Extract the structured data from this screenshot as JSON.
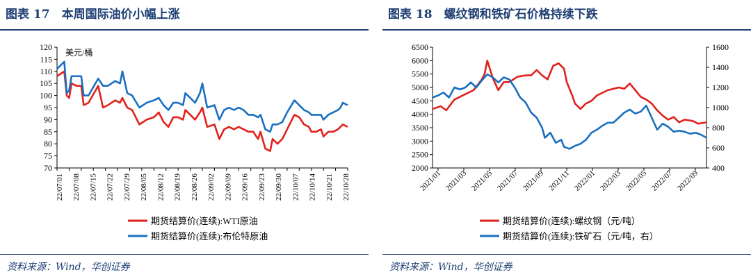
{
  "colors": {
    "red": "#e0211c",
    "blue": "#1a6fc0",
    "accent": "#1f3f73"
  },
  "left": {
    "title": "图表 17　本周国际油价小幅上涨",
    "source": "资料来源：Wind，华创证券"
  },
  "right": {
    "title": "图表 18　螺纹钢和铁矿石价格持续下跌",
    "source": "资料来源：Wind，华创证券"
  },
  "chart_data": [
    {
      "type": "line",
      "title": "本周国际油价小幅上涨",
      "unit_label": "美元/桶",
      "ylim": [
        70,
        120
      ],
      "yticks": [
        "120",
        "115",
        "110",
        "105",
        "100",
        "95",
        "90",
        "85",
        "80",
        "75",
        "70"
      ],
      "x_range": [
        0,
        120
      ],
      "x_tick_positions": [
        0,
        5,
        10,
        15,
        20,
        25,
        30,
        35,
        40,
        45,
        50,
        55,
        60,
        65,
        70,
        75,
        80,
        85,
        90,
        95,
        100,
        105,
        110,
        115,
        120
      ],
      "categories": [
        "22/07/01",
        "22/07/08",
        "22/07/15",
        "22/07/22",
        "22/07/29",
        "22/08/05",
        "22/08/12",
        "22/08/19",
        "22/08/26",
        "22/09/02",
        "22/09/09",
        "22/09/16",
        "22/09/23",
        "22/09/30",
        "22/10/07",
        "22/10/14",
        "22/10/21",
        "22/10/28"
      ],
      "series": [
        {
          "name": "期货结算价(连续):WTI原油",
          "color": "red",
          "points": [
            [
              0,
              108
            ],
            [
              3,
              110
            ],
            [
              4,
              100
            ],
            [
              5,
              99
            ],
            [
              6,
              105
            ],
            [
              8,
              104
            ],
            [
              10,
              104
            ],
            [
              11,
              96
            ],
            [
              13,
              97
            ],
            [
              17,
              104
            ],
            [
              19,
              95
            ],
            [
              21,
              96
            ],
            [
              24,
              98
            ],
            [
              26,
              97
            ],
            [
              27,
              99
            ],
            [
              29,
              95
            ],
            [
              31,
              94
            ],
            [
              34,
              88
            ],
            [
              37,
              90
            ],
            [
              40,
              91
            ],
            [
              42,
              93
            ],
            [
              44,
              89
            ],
            [
              46,
              87
            ],
            [
              48,
              91
            ],
            [
              50,
              91
            ],
            [
              52,
              90
            ],
            [
              53,
              94
            ],
            [
              55,
              92
            ],
            [
              57,
              90
            ],
            [
              59,
              93
            ],
            [
              60,
              95
            ],
            [
              62,
              87
            ],
            [
              65,
              88
            ],
            [
              67,
              82
            ],
            [
              69,
              86
            ],
            [
              71,
              87
            ],
            [
              73,
              86
            ],
            [
              75,
              87
            ],
            [
              77,
              86
            ],
            [
              79,
              85
            ],
            [
              81,
              85
            ],
            [
              83,
              82
            ],
            [
              84,
              85
            ],
            [
              86,
              78
            ],
            [
              88,
              77
            ],
            [
              89,
              82
            ],
            [
              91,
              80
            ],
            [
              93,
              82
            ],
            [
              95,
              86
            ],
            [
              98,
              92
            ],
            [
              100,
              91
            ],
            [
              102,
              88
            ],
            [
              104,
              87
            ],
            [
              105,
              85
            ],
            [
              107,
              85
            ],
            [
              109,
              86
            ],
            [
              110,
              83
            ],
            [
              112,
              85
            ],
            [
              114,
              85
            ],
            [
              116,
              86
            ],
            [
              117,
              87
            ],
            [
              118,
              88
            ],
            [
              120,
              87
            ]
          ]
        },
        {
          "name": "期货结算价(连续):布伦特原油",
          "color": "blue",
          "points": [
            [
              0,
              111
            ],
            [
              3,
              114
            ],
            [
              4,
              101
            ],
            [
              5,
              102
            ],
            [
              6,
              108
            ],
            [
              8,
              108
            ],
            [
              10,
              108
            ],
            [
              11,
              100
            ],
            [
              13,
              100
            ],
            [
              17,
              107
            ],
            [
              19,
              104
            ],
            [
              21,
              104
            ],
            [
              24,
              106
            ],
            [
              26,
              105
            ],
            [
              27,
              110
            ],
            [
              29,
              101
            ],
            [
              31,
              100
            ],
            [
              34,
              95
            ],
            [
              37,
              97
            ],
            [
              40,
              98
            ],
            [
              42,
              99
            ],
            [
              44,
              96
            ],
            [
              46,
              94
            ],
            [
              48,
              97
            ],
            [
              50,
              97
            ],
            [
              52,
              96
            ],
            [
              53,
              101
            ],
            [
              55,
              99
            ],
            [
              57,
              97
            ],
            [
              59,
              101
            ],
            [
              60,
              105
            ],
            [
              62,
              95
            ],
            [
              65,
              96
            ],
            [
              67,
              90
            ],
            [
              69,
              94
            ],
            [
              71,
              95
            ],
            [
              73,
              94
            ],
            [
              75,
              95
            ],
            [
              77,
              94
            ],
            [
              79,
              92
            ],
            [
              81,
              92
            ],
            [
              83,
              91
            ],
            [
              84,
              92
            ],
            [
              86,
              86
            ],
            [
              88,
              85
            ],
            [
              89,
              88
            ],
            [
              91,
              88
            ],
            [
              93,
              89
            ],
            [
              95,
              93
            ],
            [
              98,
              98
            ],
            [
              100,
              96
            ],
            [
              102,
              94
            ],
            [
              104,
              93
            ],
            [
              105,
              92
            ],
            [
              107,
              92
            ],
            [
              109,
              92
            ],
            [
              110,
              90
            ],
            [
              112,
              92
            ],
            [
              114,
              93
            ],
            [
              116,
              94
            ],
            [
              117,
              95
            ],
            [
              118,
              97
            ],
            [
              120,
              96
            ]
          ]
        }
      ]
    },
    {
      "type": "line",
      "title": "螺纹钢和铁矿石价格持续下跌",
      "ylim_left": [
        2000,
        6500
      ],
      "ylim_right": [
        400,
        1600
      ],
      "yticks_left": [
        "6500",
        "6000",
        "5500",
        "5000",
        "4500",
        "4000",
        "3500",
        "3000",
        "2500",
        "2000"
      ],
      "yticks_right": [
        "1600",
        "1400",
        "1200",
        "1000",
        "800",
        "600",
        "400"
      ],
      "x_range": [
        0,
        1.0
      ],
      "categories": [
        "2021/01",
        "2021/03",
        "2021/05",
        "2021/07",
        "2021/09",
        "2021/11",
        "2022/01",
        "2022/03",
        "2022/05",
        "2022/07",
        "2022/09"
      ],
      "series": [
        {
          "name": "期货结算价(连续):螺纹钢（元/吨）",
          "color": "red",
          "axis": "left",
          "points": [
            [
              0,
              4200
            ],
            [
              0.03,
              4300
            ],
            [
              0.05,
              4150
            ],
            [
              0.08,
              4550
            ],
            [
              0.12,
              4750
            ],
            [
              0.15,
              4900
            ],
            [
              0.18,
              5300
            ],
            [
              0.19,
              5500
            ],
            [
              0.2,
              6000
            ],
            [
              0.22,
              5350
            ],
            [
              0.24,
              4900
            ],
            [
              0.26,
              5200
            ],
            [
              0.28,
              5200
            ],
            [
              0.31,
              5400
            ],
            [
              0.34,
              5450
            ],
            [
              0.36,
              5450
            ],
            [
              0.38,
              5650
            ],
            [
              0.4,
              5450
            ],
            [
              0.42,
              5300
            ],
            [
              0.44,
              5800
            ],
            [
              0.46,
              5900
            ],
            [
              0.48,
              5700
            ],
            [
              0.49,
              5200
            ],
            [
              0.51,
              4700
            ],
            [
              0.52,
              4400
            ],
            [
              0.54,
              4200
            ],
            [
              0.56,
              4400
            ],
            [
              0.58,
              4500
            ],
            [
              0.6,
              4700
            ],
            [
              0.62,
              4800
            ],
            [
              0.64,
              4900
            ],
            [
              0.66,
              4950
            ],
            [
              0.68,
              5000
            ],
            [
              0.7,
              4950
            ],
            [
              0.72,
              5150
            ],
            [
              0.74,
              4900
            ],
            [
              0.76,
              4650
            ],
            [
              0.78,
              4550
            ],
            [
              0.8,
              4400
            ],
            [
              0.82,
              4150
            ],
            [
              0.84,
              3950
            ],
            [
              0.86,
              3800
            ],
            [
              0.88,
              3900
            ],
            [
              0.9,
              3700
            ],
            [
              0.92,
              3800
            ],
            [
              0.95,
              3750
            ],
            [
              0.97,
              3650
            ],
            [
              1.0,
              3700
            ]
          ]
        },
        {
          "name": "期货结算价(连续):铁矿石（元/吨，右）",
          "color": "blue",
          "axis": "right",
          "points": [
            [
              0,
              1100
            ],
            [
              0.02,
              1120
            ],
            [
              0.04,
              1150
            ],
            [
              0.06,
              1100
            ],
            [
              0.08,
              1200
            ],
            [
              0.1,
              1180
            ],
            [
              0.12,
              1200
            ],
            [
              0.14,
              1250
            ],
            [
              0.16,
              1200
            ],
            [
              0.18,
              1270
            ],
            [
              0.2,
              1330
            ],
            [
              0.22,
              1300
            ],
            [
              0.24,
              1250
            ],
            [
              0.26,
              1300
            ],
            [
              0.28,
              1280
            ],
            [
              0.3,
              1200
            ],
            [
              0.32,
              1100
            ],
            [
              0.34,
              1050
            ],
            [
              0.36,
              950
            ],
            [
              0.38,
              900
            ],
            [
              0.4,
              800
            ],
            [
              0.41,
              700
            ],
            [
              0.43,
              750
            ],
            [
              0.45,
              650
            ],
            [
              0.47,
              680
            ],
            [
              0.48,
              610
            ],
            [
              0.5,
              590
            ],
            [
              0.52,
              620
            ],
            [
              0.54,
              640
            ],
            [
              0.56,
              680
            ],
            [
              0.58,
              750
            ],
            [
              0.6,
              780
            ],
            [
              0.62,
              820
            ],
            [
              0.64,
              850
            ],
            [
              0.66,
              850
            ],
            [
              0.68,
              900
            ],
            [
              0.7,
              950
            ],
            [
              0.72,
              980
            ],
            [
              0.74,
              940
            ],
            [
              0.76,
              960
            ],
            [
              0.78,
              1020
            ],
            [
              0.8,
              900
            ],
            [
              0.82,
              780
            ],
            [
              0.84,
              840
            ],
            [
              0.86,
              810
            ],
            [
              0.88,
              760
            ],
            [
              0.9,
              770
            ],
            [
              0.92,
              760
            ],
            [
              0.94,
              740
            ],
            [
              0.96,
              750
            ],
            [
              0.98,
              730
            ],
            [
              1.0,
              700
            ]
          ]
        }
      ]
    }
  ]
}
